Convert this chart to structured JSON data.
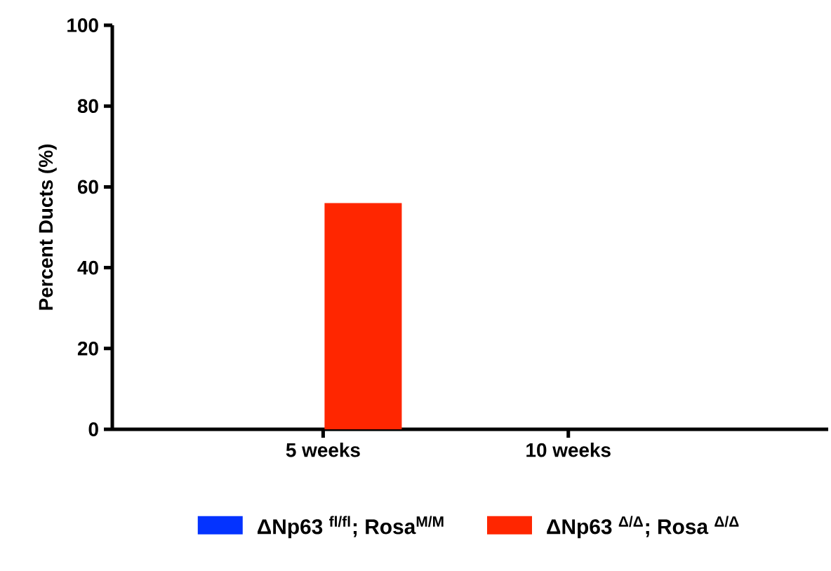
{
  "chart_data": {
    "type": "bar",
    "ylabel": "Percent Ducts (%)",
    "categories": [
      "5 weeks",
      "10 weeks"
    ],
    "series": [
      {
        "name": "ΔNp63 $^{fl/fl}$; Rosa$^{M/M}$",
        "color": "#0433ff",
        "values": [
          0,
          0
        ]
      },
      {
        "name": "ΔNp63 $^{Δ/Δ}$; Rosa $^{Δ/Δ}$",
        "color": "#ff2600",
        "values": [
          56,
          0
        ]
      }
    ],
    "ylim": [
      0,
      100
    ],
    "yticks": [
      0,
      20,
      40,
      60,
      80,
      100
    ],
    "legend": "bottom"
  }
}
